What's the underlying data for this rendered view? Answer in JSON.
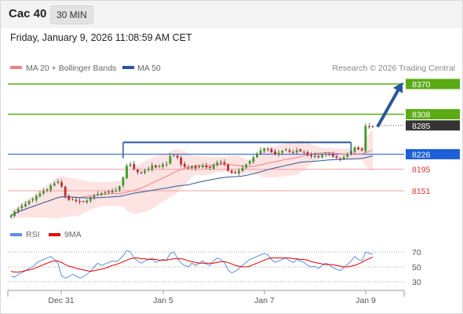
{
  "header": {
    "title": "Cac 40",
    "timeframe": "30 MIN"
  },
  "datetime": "Friday, January 9, 2026 11:08:59 AM CET",
  "legend": [
    {
      "label": "MA 20 + Bollinger Bands",
      "color": "#f08080"
    },
    {
      "label": "MA 50",
      "color": "#2b579a"
    }
  ],
  "copyright": "Research © 2026 Trading Central",
  "rsi_legend": [
    {
      "label": "RSI",
      "color": "#5b8ee0"
    },
    {
      "label": "9MA",
      "color": "#e00000"
    }
  ],
  "chart_data": {
    "type": "candlestick",
    "x_ticks": [
      "Dec 31",
      "Jan 5",
      "Jan 7",
      "Jan 9"
    ],
    "price_levels": [
      {
        "label": "8370",
        "value": 8370,
        "kind": "target",
        "color": "#5aab14"
      },
      {
        "label": "8308",
        "value": 8308,
        "kind": "resistance",
        "color": "#5aab14"
      },
      {
        "label": "8285",
        "value": 8285,
        "kind": "last",
        "color": "#333333"
      },
      {
        "label": "8226",
        "value": 8226,
        "kind": "pivot",
        "color": "#1d5fd6"
      },
      {
        "label": "8195",
        "value": 8195,
        "kind": "support",
        "color": "#e05050"
      },
      {
        "label": "8151",
        "value": 8151,
        "kind": "support",
        "color": "#e05050"
      }
    ],
    "rsi_ticks": [
      70,
      50,
      30
    ],
    "close_series": [
      8100,
      8108,
      8114,
      8120,
      8124,
      8130,
      8134,
      8140,
      8145,
      8150,
      8154,
      8162,
      8166,
      8170,
      8160,
      8140,
      8132,
      8134,
      8130,
      8128,
      8129,
      8131,
      8136,
      8140,
      8144,
      8146,
      8148,
      8149,
      8151,
      8152,
      8160,
      8178,
      8202,
      8205,
      8196,
      8189,
      8187,
      8192,
      8196,
      8203,
      8199,
      8202,
      8205,
      8206,
      8222,
      8224,
      8219,
      8205,
      8200,
      8198,
      8201,
      8197,
      8201,
      8203,
      8199,
      8198,
      8204,
      8209,
      8208,
      8206,
      8192,
      8188,
      8189,
      8192,
      8198,
      8205,
      8212,
      8220,
      8226,
      8234,
      8238,
      8236,
      8230,
      8226,
      8229,
      8233,
      8236,
      8231,
      8229,
      8234,
      8232,
      8230,
      8224,
      8222,
      8223,
      8220,
      8224,
      8227,
      8225,
      8221,
      8219,
      8216,
      8220,
      8225,
      8232,
      8240,
      8236,
      8234,
      8284,
      8283,
      8282
    ],
    "rsi_series": [
      38,
      36,
      40,
      42,
      45,
      48,
      50,
      55,
      58,
      60,
      62,
      64,
      60,
      55,
      38,
      35,
      37,
      40,
      38,
      35,
      37,
      40,
      44,
      50,
      55,
      52,
      54,
      56,
      58,
      57,
      60,
      65,
      72,
      70,
      62,
      58,
      55,
      58,
      60,
      62,
      56,
      58,
      60,
      59,
      68,
      70,
      62,
      55,
      52,
      50,
      55,
      52,
      55,
      58,
      54,
      52,
      58,
      62,
      60,
      56,
      46,
      42,
      44,
      48,
      52,
      56,
      60,
      62,
      64,
      66,
      68,
      66,
      60,
      56,
      58,
      60,
      62,
      58,
      56,
      60,
      58,
      56,
      52,
      50,
      51,
      48,
      52,
      55,
      53,
      49,
      47,
      45,
      49,
      53,
      58,
      64,
      60,
      58,
      70,
      68,
      67
    ],
    "rsi_ma_series": [
      44,
      43,
      43,
      44,
      45,
      46,
      47,
      49,
      51,
      53,
      55,
      57,
      58,
      58,
      56,
      53,
      51,
      50,
      48,
      47,
      46,
      45,
      44,
      45,
      46,
      47,
      48,
      50,
      52,
      53,
      55,
      57,
      59,
      61,
      62,
      62,
      61,
      61,
      60,
      60,
      60,
      59,
      59,
      59,
      60,
      61,
      61,
      61,
      60,
      58,
      57,
      56,
      55,
      55,
      55,
      55,
      55,
      56,
      57,
      57,
      56,
      54,
      52,
      51,
      50,
      50,
      51,
      53,
      55,
      57,
      59,
      61,
      62,
      62,
      62,
      62,
      62,
      62,
      61,
      61,
      60,
      60,
      59,
      57,
      56,
      55,
      54,
      53,
      53,
      53,
      52,
      51,
      50,
      50,
      51,
      52,
      54,
      56,
      59,
      61,
      63
    ]
  }
}
